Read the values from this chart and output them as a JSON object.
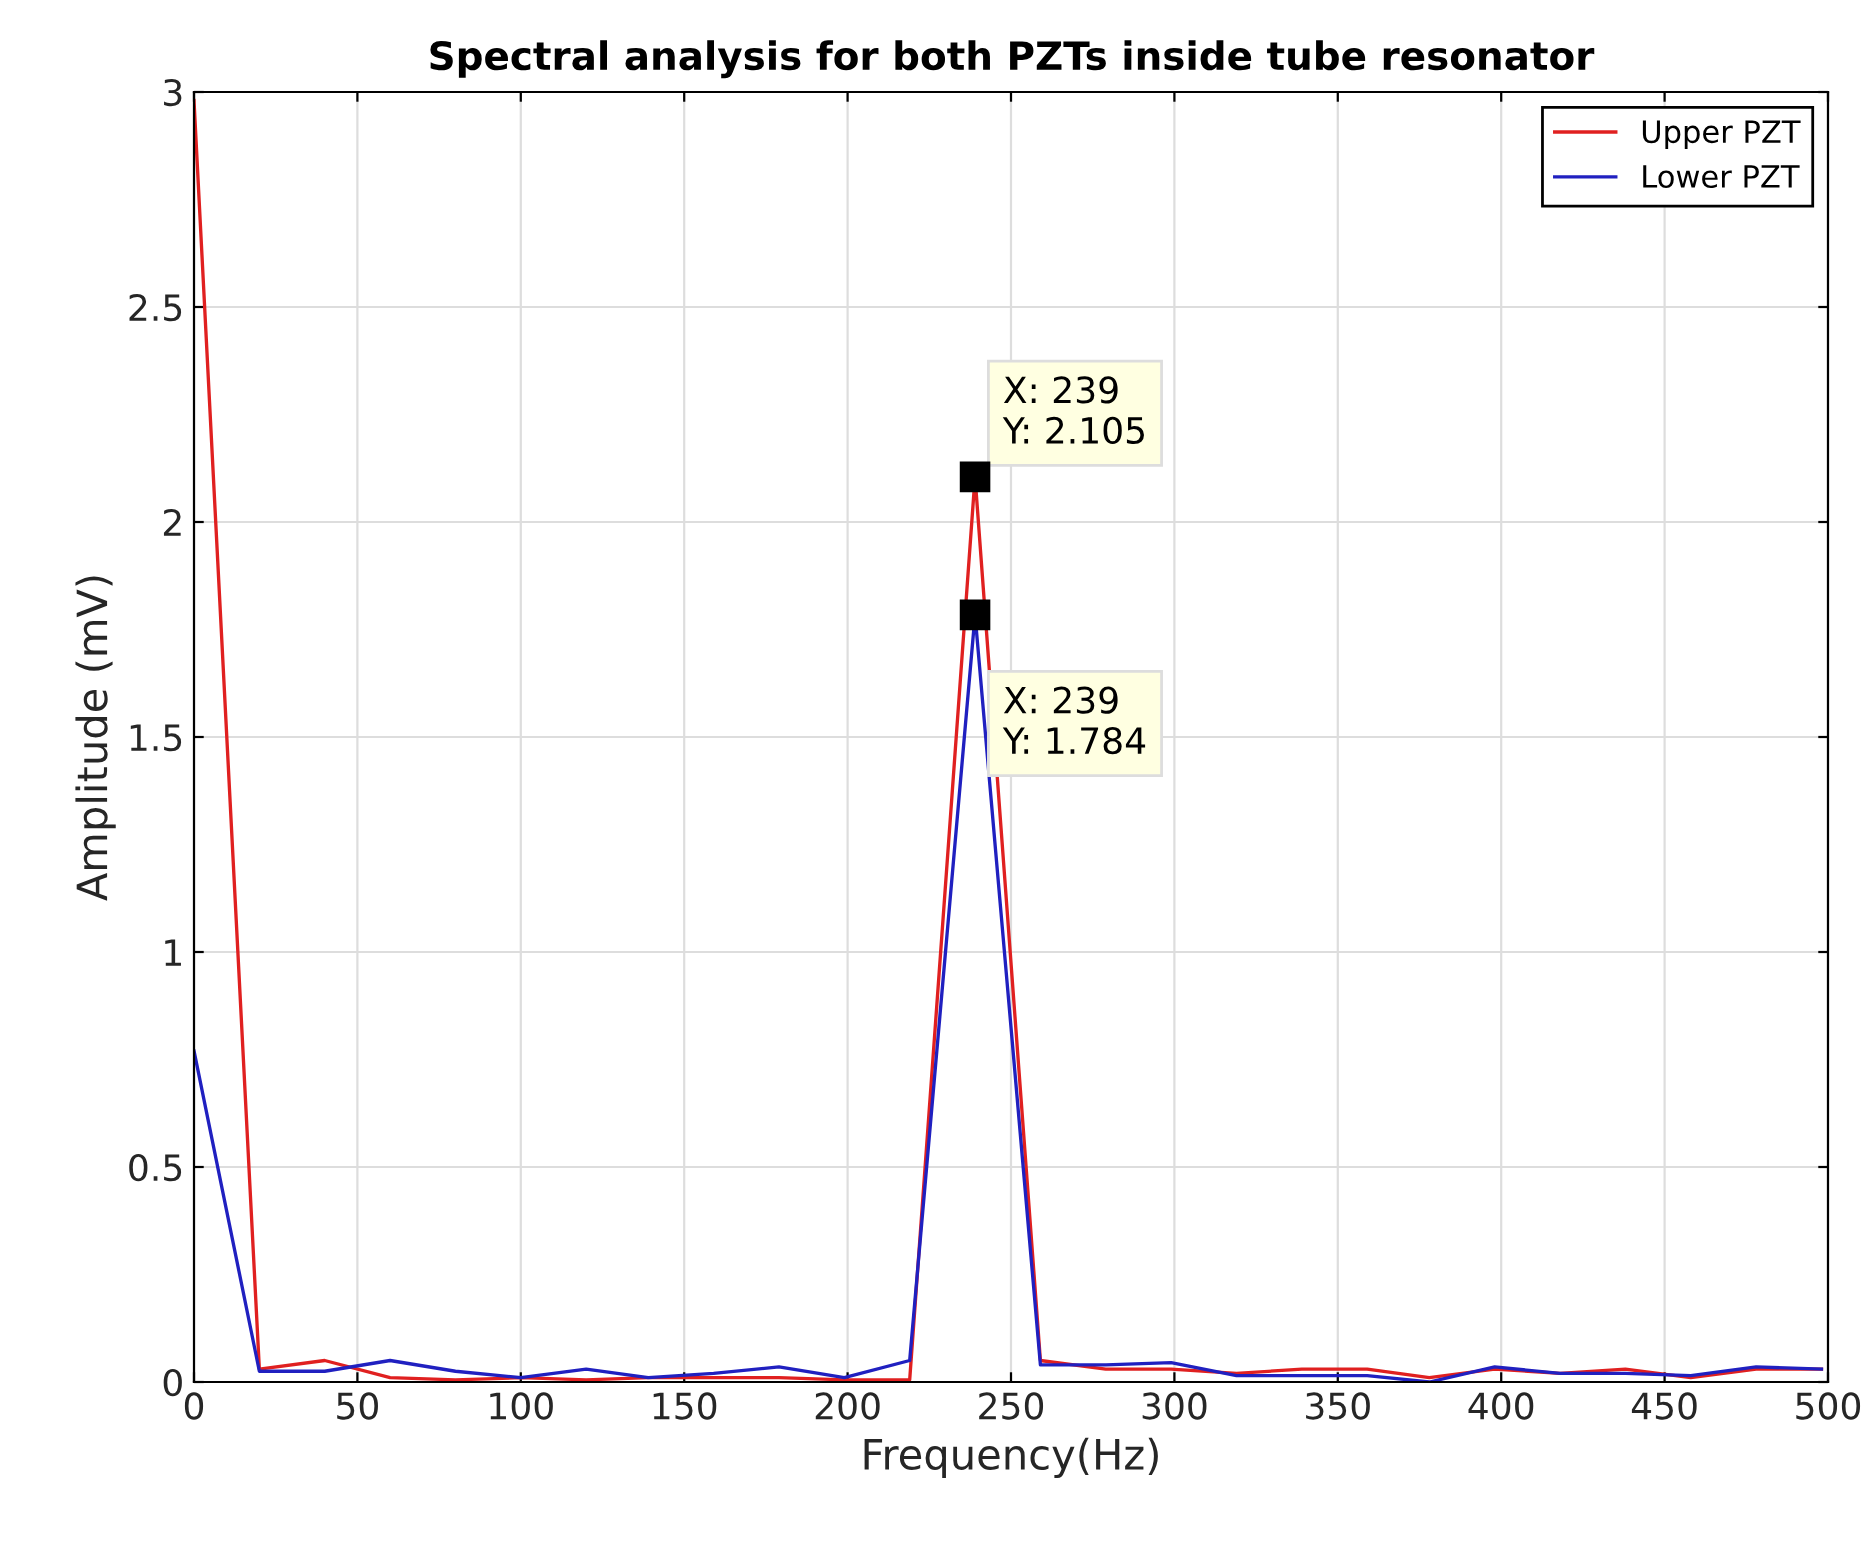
{
  "chart_data": {
    "type": "line",
    "title": "Spectral analysis for both PZTs inside tube resonator",
    "xlabel": "Frequency(Hz)",
    "ylabel": "Amplitude (mV)",
    "x": [
      0,
      20,
      40,
      60,
      80,
      100,
      120,
      139,
      159,
      179,
      199,
      219,
      239,
      259,
      279,
      299,
      319,
      339,
      359,
      378,
      398,
      418,
      438,
      458,
      478,
      498
    ],
    "series": [
      {
        "name": "Upper PZT",
        "color": "#e02020",
        "values": [
          2.98,
          0.03,
          0.05,
          0.01,
          0.005,
          0.01,
          0.005,
          0.01,
          0.01,
          0.01,
          0.005,
          0.005,
          2.105,
          0.05,
          0.03,
          0.03,
          0.02,
          0.03,
          0.03,
          0.01,
          0.03,
          0.02,
          0.03,
          0.01,
          0.03,
          0.03
        ]
      },
      {
        "name": "Lower PZT",
        "color": "#2020c0",
        "values": [
          0.77,
          0.025,
          0.025,
          0.05,
          0.025,
          0.01,
          0.03,
          0.01,
          0.02,
          0.035,
          0.01,
          0.05,
          1.784,
          0.04,
          0.04,
          0.045,
          0.015,
          0.015,
          0.015,
          0.0,
          0.035,
          0.02,
          0.02,
          0.015,
          0.035,
          0.03
        ]
      }
    ],
    "annotations": [
      {
        "text": "X: 239\nY: 2.105",
        "x": 239,
        "y": 2.105
      },
      {
        "text": "X: 239\nY: 1.784",
        "x": 239,
        "y": 1.784
      }
    ],
    "xlim": [
      0,
      500
    ],
    "xticks": [
      0,
      50,
      100,
      150,
      200,
      250,
      300,
      350,
      400,
      450,
      500
    ],
    "ylim": [
      0,
      3
    ],
    "yticks": [
      0,
      0.5,
      1,
      1.5,
      2,
      2.5,
      3
    ],
    "grid": true,
    "legend": "top right",
    "marker": "none",
    "line_style": "solid"
  }
}
